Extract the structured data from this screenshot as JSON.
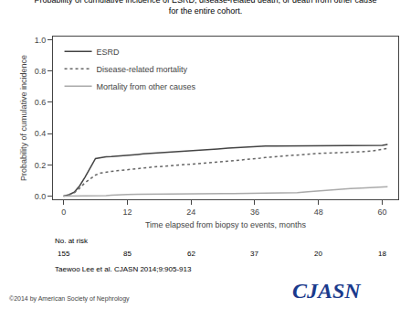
{
  "chart_data": {
    "type": "line",
    "title": "Probability of cumulative incidence of ESRD, disease-related death, or death from other cause",
    "subtitle": "for the entire cohort.",
    "x_label": "Time elapsed from biopsy to events, months",
    "y_label": "Probability of cumulative incidence",
    "xlim": [
      -2,
      63
    ],
    "ylim": [
      -0.02,
      1.02
    ],
    "xticks": [
      0,
      12,
      24,
      36,
      48,
      60
    ],
    "yticks": [
      {
        "value": 0.0,
        "label": "0.0"
      },
      0.2,
      0.4,
      0.6,
      0.8,
      {
        "value": 1.0,
        "label": "1.0"
      }
    ],
    "grid": false,
    "legend": "upper left",
    "series": [
      {
        "name": "ESRD",
        "color": "#444444",
        "line_style": "solid",
        "x": [
          0,
          0.5,
          1,
          2,
          3,
          4,
          5,
          5.5,
          6,
          7,
          8,
          9,
          10,
          11,
          12,
          13,
          14,
          15,
          17,
          19,
          21,
          23,
          25,
          27,
          29,
          31,
          33,
          35,
          36,
          38,
          40,
          42,
          44,
          46,
          48,
          50,
          52,
          54,
          56,
          58,
          60,
          61
        ],
        "values": [
          0,
          0.003,
          0.01,
          0.025,
          0.065,
          0.12,
          0.175,
          0.21,
          0.24,
          0.248,
          0.252,
          0.253,
          0.255,
          0.258,
          0.26,
          0.263,
          0.267,
          0.27,
          0.274,
          0.278,
          0.282,
          0.287,
          0.293,
          0.297,
          0.302,
          0.307,
          0.312,
          0.316,
          0.32,
          0.321,
          0.321,
          0.321,
          0.321,
          0.321,
          0.321,
          0.321,
          0.321,
          0.321,
          0.321,
          0.321,
          0.325,
          0.33
        ]
      },
      {
        "name": "Disease-related mortality",
        "color": "#666666",
        "line_style": "dotted",
        "x": [
          0,
          0.5,
          1,
          2,
          3,
          4,
          5,
          6,
          7,
          8,
          9,
          10,
          11,
          12,
          13,
          14,
          15,
          17,
          19,
          21,
          23,
          25,
          27,
          29,
          31,
          33,
          35,
          36,
          37,
          38,
          39,
          40,
          41,
          42,
          43,
          44,
          45,
          46,
          47,
          48,
          50,
          52,
          54,
          56,
          58,
          60,
          61
        ],
        "values": [
          0,
          0.002,
          0.008,
          0.022,
          0.05,
          0.085,
          0.11,
          0.135,
          0.148,
          0.155,
          0.158,
          0.162,
          0.166,
          0.17,
          0.175,
          0.179,
          0.182,
          0.187,
          0.191,
          0.196,
          0.2,
          0.205,
          0.211,
          0.218,
          0.224,
          0.23,
          0.235,
          0.24,
          0.243,
          0.247,
          0.25,
          0.254,
          0.257,
          0.26,
          0.263,
          0.265,
          0.267,
          0.269,
          0.271,
          0.273,
          0.275,
          0.277,
          0.28,
          0.284,
          0.288,
          0.298,
          0.305
        ]
      },
      {
        "name": "Mortality from other causes",
        "color": "#aaaaaa",
        "line_style": "solid",
        "x": [
          0,
          1,
          2,
          3,
          4,
          5,
          6,
          7,
          8,
          9,
          10,
          12,
          14,
          16,
          18,
          20,
          24,
          28,
          30,
          32,
          36,
          40,
          44,
          46,
          48,
          50,
          52,
          54,
          56,
          58,
          60,
          61
        ],
        "values": [
          0,
          0,
          0,
          0,
          0,
          0,
          0,
          0,
          0.003,
          0.006,
          0.009,
          0.011,
          0.012,
          0.012,
          0.013,
          0.013,
          0.014,
          0.015,
          0.016,
          0.017,
          0.018,
          0.02,
          0.022,
          0.028,
          0.034,
          0.04,
          0.044,
          0.048,
          0.052,
          0.055,
          0.058,
          0.06
        ]
      }
    ],
    "at_risk": {
      "label": "No. at risk",
      "x": [
        0,
        12,
        24,
        36,
        48,
        60
      ],
      "values": [
        155,
        85,
        62,
        37,
        20,
        18
      ]
    },
    "annotations": [
      {
        "text": "Taewoo Lee et al. CJASN 2014;9:905-913"
      },
      {
        "text": "©2014 by American Society of Nephrology"
      },
      {
        "text": "CJASN",
        "color": "#1a3a8c"
      }
    ]
  }
}
